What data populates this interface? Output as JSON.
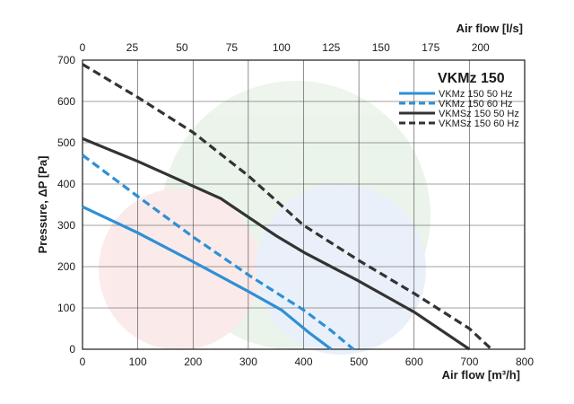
{
  "chart_data": {
    "type": "line",
    "title": "VKMz 150",
    "xlabel": "Air flow [m³/h]",
    "ylabel": "Pressure, ΔP [Pa]",
    "x2label": "Air flow [l/s]",
    "xlim": [
      0,
      800
    ],
    "ylim": [
      0,
      700
    ],
    "x2lim": [
      0,
      222.22
    ],
    "x_ticks": [
      "0",
      "100",
      "200",
      "300",
      "400",
      "500",
      "600",
      "700",
      "800"
    ],
    "y_ticks": [
      "0",
      "100",
      "200",
      "300",
      "400",
      "500",
      "600",
      "700"
    ],
    "x2_ticks": [
      "0",
      "25",
      "50",
      "75",
      "100",
      "125",
      "150",
      "175",
      "200"
    ],
    "x2_tick_values": [
      0,
      25,
      50,
      75,
      100,
      125,
      150,
      175,
      200
    ],
    "grid": true,
    "legend_position": "top-right",
    "series": [
      {
        "name": "VKMz 150  50 Hz",
        "color": "#2e8fd6",
        "dash": "solid",
        "x": [
          0,
          100,
          200,
          300,
          360,
          410,
          450
        ],
        "y": [
          345,
          282,
          212,
          140,
          95,
          40,
          0
        ]
      },
      {
        "name": "VKMz 150  60 Hz",
        "color": "#2e8fd6",
        "dash": "dashed",
        "x": [
          0,
          100,
          200,
          300,
          400,
          450,
          490
        ],
        "y": [
          470,
          370,
          272,
          180,
          95,
          45,
          0
        ]
      },
      {
        "name": "VKMSz 150  50 Hz",
        "color": "#333333",
        "dash": "solid",
        "x": [
          0,
          100,
          200,
          250,
          300,
          350,
          400,
          500,
          600,
          700
        ],
        "y": [
          510,
          455,
          395,
          365,
          320,
          275,
          235,
          165,
          90,
          0
        ]
      },
      {
        "name": "VKMSz 150  60 Hz",
        "color": "#333333",
        "dash": "dashed",
        "x": [
          0,
          100,
          200,
          300,
          400,
          500,
          600,
          700,
          740
        ],
        "y": [
          690,
          610,
          525,
          420,
          300,
          215,
          135,
          50,
          0
        ]
      }
    ]
  }
}
